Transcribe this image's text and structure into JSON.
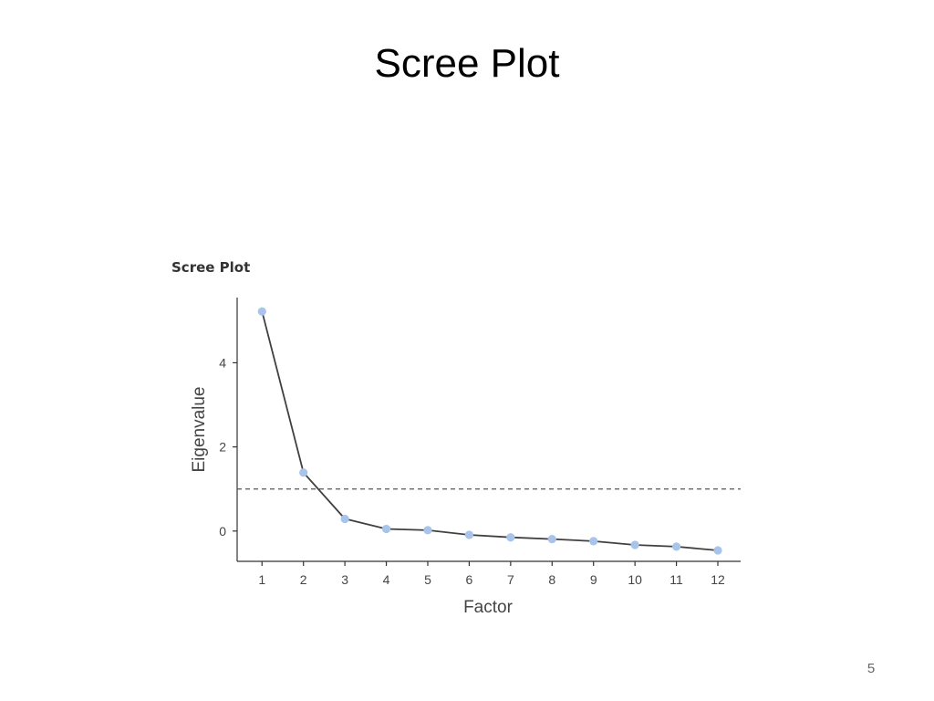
{
  "slide": {
    "title": "Scree Plot",
    "page_number": "5"
  },
  "chart_data": {
    "type": "line",
    "title": "Scree Plot",
    "xlabel": "Factor",
    "ylabel": "Eigenvalue",
    "x": [
      1,
      2,
      3,
      4,
      5,
      6,
      7,
      8,
      9,
      10,
      11,
      12
    ],
    "x_tick_labels": [
      "1",
      "2",
      "3",
      "4",
      "5",
      "6",
      "7",
      "8",
      "9",
      "10",
      "11",
      "12"
    ],
    "y_ticks": [
      0,
      2,
      4
    ],
    "y_tick_labels": [
      "0",
      "2",
      "4"
    ],
    "xlim": [
      0.4,
      12.55
    ],
    "ylim": [
      -0.72,
      5.55
    ],
    "series": [
      {
        "values": [
          5.22,
          1.39,
          0.29,
          0.05,
          0.02,
          -0.09,
          -0.15,
          -0.19,
          -0.24,
          -0.33,
          -0.37,
          -0.46
        ],
        "line_color": "#404040",
        "marker_color": "#a9c4ea"
      }
    ],
    "reference_line": {
      "y": 1,
      "style": "dashed",
      "color": "#555555"
    },
    "grid": false,
    "legend": "none"
  }
}
